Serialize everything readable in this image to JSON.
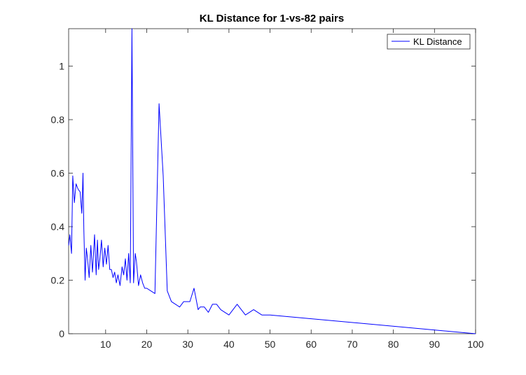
{
  "chart_data": {
    "type": "line",
    "title": "KL Distance for 1-vs-82 pairs",
    "xlabel": "",
    "ylabel": "",
    "xlim": [
      1,
      100
    ],
    "ylim": [
      0,
      1.14
    ],
    "xticks": [
      10,
      20,
      30,
      40,
      50,
      60,
      70,
      80,
      90,
      100
    ],
    "yticks": [
      0,
      0.2,
      0.4,
      0.6,
      0.8,
      1
    ],
    "ytick_labels": [
      "0",
      "0.2",
      "0.4",
      "0.6",
      "0.8",
      "1"
    ],
    "grid": false,
    "legend": {
      "position": "top-right",
      "entries": [
        "KL Distance"
      ]
    },
    "series": [
      {
        "name": "KL Distance",
        "color": "#0000ff",
        "x": [
          1,
          1.3,
          1.7,
          2,
          2.4,
          2.8,
          3.3,
          3.8,
          4.2,
          4.5,
          4.7,
          5,
          5.3,
          5.6,
          6,
          6.4,
          6.8,
          7.3,
          7.7,
          8,
          8.3,
          8.6,
          9,
          9.4,
          9.8,
          10.2,
          10.6,
          11,
          11.4,
          11.8,
          12.2,
          12.6,
          13,
          13.5,
          14,
          14.4,
          14.8,
          15.2,
          15.6,
          16,
          16.4,
          16.8,
          17.2,
          17.5,
          18,
          18.5,
          19,
          19.5,
          20,
          21,
          22,
          23,
          24,
          25,
          26,
          27,
          28,
          29,
          30.5,
          31.5,
          32.5,
          33,
          34,
          35,
          36,
          37,
          38,
          39,
          40,
          41,
          42,
          43,
          44,
          45,
          46,
          47,
          48,
          49,
          50,
          100
        ],
        "values": [
          0.33,
          0.37,
          0.3,
          0.59,
          0.49,
          0.56,
          0.54,
          0.53,
          0.45,
          0.6,
          0.39,
          0.2,
          0.32,
          0.28,
          0.21,
          0.33,
          0.23,
          0.37,
          0.22,
          0.35,
          0.24,
          0.28,
          0.35,
          0.25,
          0.32,
          0.26,
          0.33,
          0.24,
          0.24,
          0.21,
          0.23,
          0.19,
          0.22,
          0.18,
          0.25,
          0.22,
          0.28,
          0.2,
          0.3,
          0.19,
          1.14,
          0.19,
          0.3,
          0.27,
          0.18,
          0.22,
          0.19,
          0.17,
          0.17,
          0.16,
          0.15,
          0.86,
          0.59,
          0.16,
          0.12,
          0.11,
          0.1,
          0.12,
          0.12,
          0.17,
          0.09,
          0.1,
          0.1,
          0.08,
          0.11,
          0.11,
          0.09,
          0.08,
          0.07,
          0.09,
          0.11,
          0.09,
          0.07,
          0.08,
          0.09,
          0.08,
          0.07,
          0.07,
          0.07,
          0.0
        ]
      }
    ]
  }
}
